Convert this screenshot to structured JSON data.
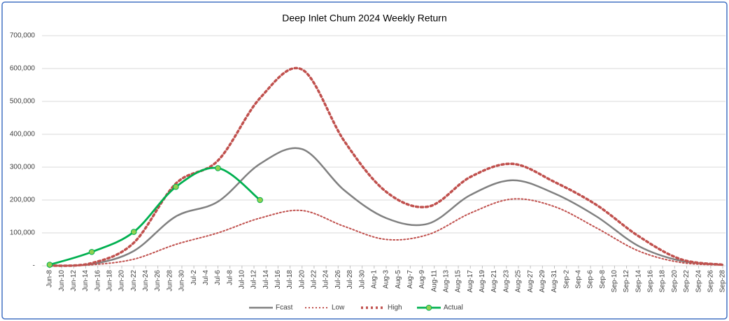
{
  "chart_data": {
    "type": "line",
    "title": "Deep Inlet Chum 2024 Weekly Return",
    "x": [
      "Jun-8",
      "Jun-15",
      "Jun-22",
      "Jun-29",
      "Jul-6",
      "Jul-13",
      "Jul-20",
      "Jul-27",
      "Aug-3",
      "Aug-10",
      "Aug-17",
      "Aug-24",
      "Aug-31",
      "Sep-7",
      "Sep-14",
      "Sep-21",
      "Sep-28"
    ],
    "series": [
      {
        "name": "Fcast",
        "color": "#808080",
        "style": "solid",
        "values": [
          0,
          5000,
          45000,
          150000,
          195000,
          310000,
          355000,
          230000,
          145000,
          128000,
          215000,
          260000,
          220000,
          150000,
          60000,
          15000,
          3000
        ]
      },
      {
        "name": "Low",
        "color": "#c0504d",
        "style": "dotted",
        "values": [
          0,
          3000,
          20000,
          65000,
          100000,
          145000,
          168000,
          120000,
          80000,
          95000,
          160000,
          203000,
          180000,
          115000,
          45000,
          10000,
          2000
        ]
      },
      {
        "name": "High",
        "color": "#c0504d",
        "style": "dotted-thick",
        "values": [
          0,
          8000,
          70000,
          250000,
          320000,
          510000,
          597000,
          380000,
          225000,
          180000,
          270000,
          310000,
          255000,
          185000,
          90000,
          20000,
          3000
        ]
      },
      {
        "name": "Actual",
        "color": "#00b050",
        "marker_color": "#92d050",
        "style": "solid-marker",
        "values": [
          3000,
          42000,
          103000,
          240000,
          297000,
          200000,
          null,
          null,
          null,
          null,
          null,
          null,
          null,
          null,
          null,
          null,
          null
        ]
      }
    ],
    "xlim": [
      "Jun-8",
      "Sep-28"
    ],
    "xticks": [
      "Jun-8",
      "Jun-10",
      "Jun-12",
      "Jun-14",
      "Jun-16",
      "Jun-18",
      "Jun-20",
      "Jun-22",
      "Jun-24",
      "Jun-26",
      "Jun-28",
      "Jun-30",
      "Jul-2",
      "Jul-4",
      "Jul-6",
      "Jul-8",
      "Jul-10",
      "Jul-12",
      "Jul-14",
      "Jul-16",
      "Jul-18",
      "Jul-20",
      "Jul-22",
      "Jul-24",
      "Jul-26",
      "Jul-28",
      "Jul-30",
      "Aug-1",
      "Aug-3",
      "Aug-5",
      "Aug-7",
      "Aug-9",
      "Aug-11",
      "Aug-13",
      "Aug-15",
      "Aug-17",
      "Aug-19",
      "Aug-21",
      "Aug-23",
      "Aug-25",
      "Aug-27",
      "Aug-29",
      "Aug-31",
      "Sep-2",
      "Sep-4",
      "Sep-6",
      "Sep-8",
      "Sep-10",
      "Sep-12",
      "Sep-14",
      "Sep-16",
      "Sep-18",
      "Sep-20",
      "Sep-22",
      "Sep-24",
      "Sep-26",
      "Sep-28"
    ],
    "ylim": [
      0,
      700000
    ],
    "yticks": [
      {
        "value": 0,
        "label": "-"
      },
      {
        "value": 100000,
        "label": "100,000"
      },
      {
        "value": 200000,
        "label": "200,000"
      },
      {
        "value": 300000,
        "label": "300,000"
      },
      {
        "value": 400000,
        "label": "400,000"
      },
      {
        "value": 500000,
        "label": "500,000"
      },
      {
        "value": 600000,
        "label": "600,000"
      },
      {
        "value": 700000,
        "label": "700,000"
      }
    ],
    "grid": true,
    "legend": "bottom"
  }
}
